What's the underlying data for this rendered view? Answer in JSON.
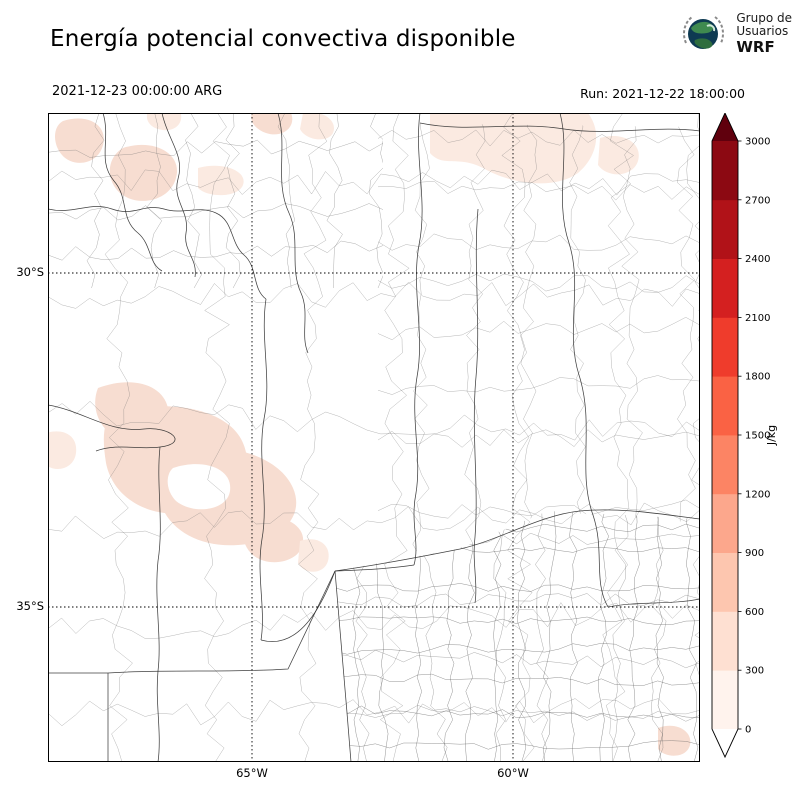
{
  "header": {
    "title": "Energía potencial convectiva disponible",
    "valid_time": "2021-12-23 00:00:00 ARG",
    "run_label": "Run: 2021-12-22 18:00:00"
  },
  "logo": {
    "line1": "Grupo de",
    "line2": "Usuarios",
    "line3": "WRF"
  },
  "map": {
    "lat_labels": [
      {
        "label": "30°S"
      },
      {
        "label": "35°S"
      }
    ],
    "lon_labels": [
      {
        "label": "65°W"
      },
      {
        "label": "60°W"
      }
    ]
  },
  "colorbar": {
    "unit": "J/kg",
    "min": 0,
    "max": 3000,
    "step": 300,
    "ticks": [
      "0",
      "300",
      "600",
      "900",
      "1200",
      "1500",
      "1800",
      "2100",
      "2400",
      "2700",
      "3000"
    ],
    "segment_colors": [
      "#fff3ed",
      "#fee0d2",
      "#fdc6af",
      "#fca78c",
      "#fc8464",
      "#fa6244",
      "#ef3c2c",
      "#d42020",
      "#b11218",
      "#8c0912"
    ],
    "under_color": "#ffffff",
    "over_color": "#60000d"
  },
  "chart_data": {
    "type": "heatmap",
    "title": "Energía potencial convectiva disponible",
    "unit": "J/kg",
    "valid_time": "2021-12-23 00:00:00 ARG",
    "run": "2021-12-22 18:00:00",
    "colorbar_ticks": [
      0,
      300,
      600,
      900,
      1200,
      1500,
      1800,
      2100,
      2400,
      2700,
      3000
    ],
    "colorbar_range": [
      0,
      3000
    ],
    "lat_ticks": [
      "30°S",
      "35°S"
    ],
    "lon_ticks": [
      "65°W",
      "60°W"
    ],
    "approx_shaded_value_range": [
      0,
      600
    ],
    "shaded_areas": [
      "northwest corner patches (light, ~0-300)",
      "north-central top edge patches (light, ~0-300)",
      "northeast top band (very light, ~0-300)",
      "large west-central cluster (light, ~0-600)",
      "small southeast corner patch (light, ~0-300)"
    ]
  }
}
